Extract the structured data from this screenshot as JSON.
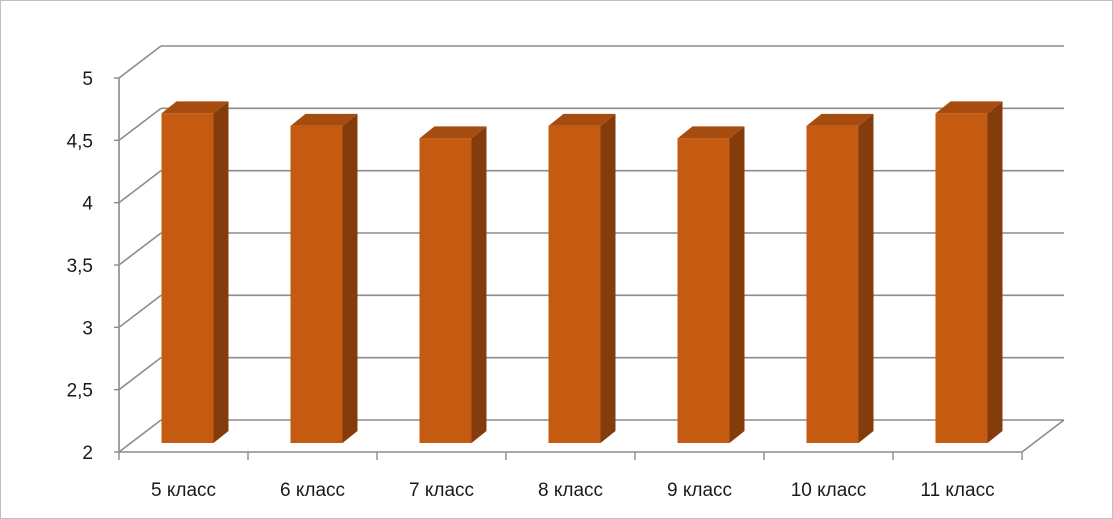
{
  "chart_data": {
    "type": "bar",
    "categories": [
      "5 класс",
      "6 класс",
      "7 класс",
      "8 класс",
      "9 класс",
      "10 класс",
      "11 класс"
    ],
    "values": [
      4.7,
      4.6,
      4.5,
      4.6,
      4.5,
      4.6,
      4.7
    ],
    "ylim": [
      2,
      5
    ],
    "ytick_labels": [
      "2",
      "2,5",
      "3",
      "3,5",
      "4",
      "4,5",
      "5"
    ],
    "grid": true,
    "legend": "none",
    "style": "3d-column",
    "colors": {
      "bar_front": "#c55a11",
      "bar_side": "#843c0c",
      "bar_top": "#a64c0e",
      "grid": "#8c8c8c"
    }
  }
}
